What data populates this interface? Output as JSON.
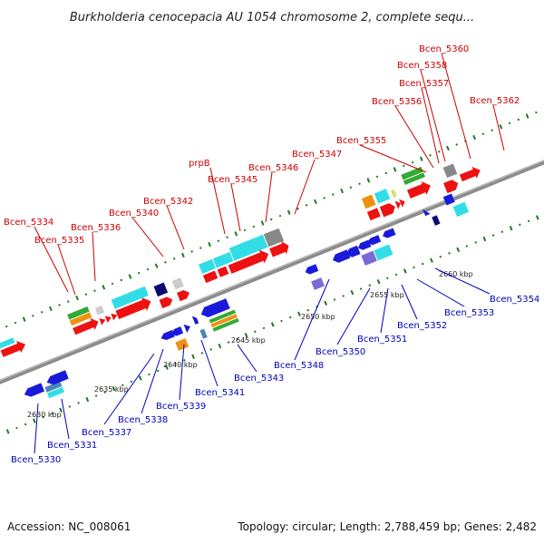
{
  "title": "Burkholderia cenocepacia AU 1054 chromosome 2, complete sequ...",
  "footer": {
    "accession": "Accession: NC_008061",
    "summary": "Topology: circular; Length: 2,788,459 bp; Genes: 2,482"
  },
  "colors": {
    "forward_label": "#cc0000",
    "reverse_label": "#0000bb",
    "backbone": "#8c8c8c",
    "tick": "#1f7a1f",
    "red": "#ee1111",
    "cyan": "#33dde6",
    "green": "#33aa33",
    "orange": "#f09010",
    "gray": "#888888",
    "blue": "#1a1adb",
    "navy": "#0a0a70",
    "purple": "#7a6ad8",
    "steel": "#4a86b8"
  },
  "kbp_labels": [
    "2630 kbp",
    "2635 kbp",
    "2640 kbp",
    "2645 kbp",
    "2650 kbp",
    "2655 kbp",
    "2660 kbp"
  ],
  "forward_genes": [
    "Bcen_5334",
    "Bcen_5335",
    "Bcen_5336",
    "Bcen_5340",
    "Bcen_5342",
    "prpB",
    "Bcen_5345",
    "Bcen_5346",
    "Bcen_5347",
    "Bcen_5355",
    "Bcen_5356",
    "Bcen_5357",
    "Bcen_5358",
    "Bcen_5360",
    "Bcen_5362"
  ],
  "reverse_genes": [
    "Bcen_5330",
    "Bcen_5331",
    "Bcen_5337",
    "Bcen_5338",
    "Bcen_5339",
    "Bcen_5341",
    "Bcen_5343",
    "Bcen_5348",
    "Bcen_5350",
    "Bcen_5351",
    "Bcen_5352",
    "Bcen_5353",
    "Bcen_5354"
  ]
}
